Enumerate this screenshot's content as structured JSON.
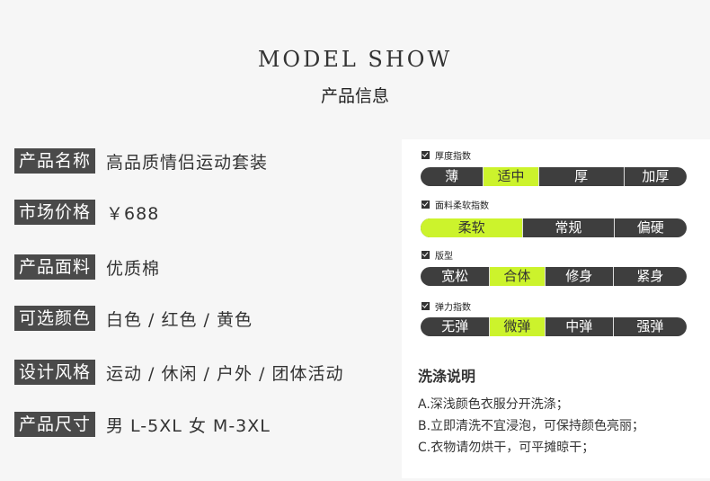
{
  "header": {
    "title": "MODEL SHOW",
    "subtitle": "产品信息"
  },
  "info": [
    {
      "label": "产品名称",
      "value": "高品质情侣运动套装"
    },
    {
      "label": "市场价格",
      "value": "￥688"
    },
    {
      "label": "产品面料",
      "value": "优质棉"
    },
    {
      "label": "可选颜色",
      "value": "白色 / 红色 / 黄色"
    },
    {
      "label": "设计风格",
      "value": "运动 / 休闲 / 户外 / 团体活动"
    },
    {
      "label": "产品尺寸",
      "value": "男 L-5XL 女 M-3XL"
    }
  ],
  "indices": [
    {
      "title": "厚度指数",
      "options": [
        "薄",
        "适中",
        "厚",
        "加厚"
      ],
      "selected": "适中"
    },
    {
      "title": "面料柔软指数",
      "options": [
        "柔软",
        "常规",
        "偏硬"
      ],
      "selected": "柔软"
    },
    {
      "title": "版型",
      "options": [
        "宽松",
        "合体",
        "修身",
        "紧身"
      ],
      "selected": "合体"
    },
    {
      "title": "弹力指数",
      "options": [
        "无弹",
        "微弹",
        "中弹",
        "强弹"
      ],
      "selected": "微弹"
    }
  ],
  "washing": {
    "title": "洗涤说明",
    "items": [
      "A.深浅颜色衣服分开洗涤；",
      "B.立即清洗不宜浸泡，可保持颜色亮丽；",
      "C.衣物请勿烘干，可平摊晾干；"
    ]
  },
  "colors": {
    "accent": "#ccf32c",
    "label_bg": "#4a4a4a",
    "bar_bg": "#3e3e3e"
  }
}
